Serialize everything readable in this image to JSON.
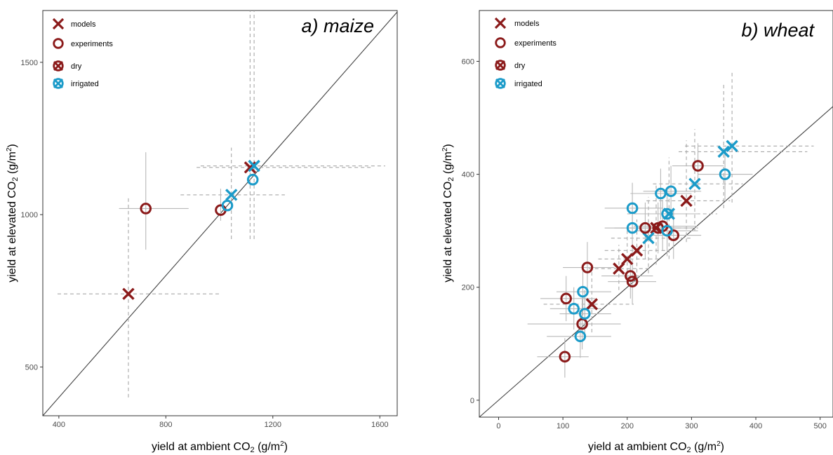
{
  "colors": {
    "dry": "#8B1A1A",
    "irrigated": "#1B9BC9",
    "model_error_bar": "#A8A8A8",
    "experiment_error_bar": "#B8B8B8",
    "one_to_one_line": "#404040"
  },
  "legend": {
    "models": "models",
    "experiments": "experiments",
    "dry": "dry",
    "irrigated": "irrigated"
  },
  "chart_data": [
    {
      "type": "scatter",
      "title": "a) maize",
      "xlabel_main": "yield at ambient CO",
      "xlabel_sub": "2",
      "xlabel_unit": " (g/m",
      "xlabel_sup": "2",
      "xlabel_close": ")",
      "ylabel_main": "yield at elevated CO",
      "ylabel_sub": "2",
      "ylabel_unit": " (g/m",
      "ylabel_sup": "2",
      "ylabel_close": ")",
      "xlim": [
        340,
        1665
      ],
      "ylim": [
        340,
        1670
      ],
      "xticks": [
        400,
        800,
        1200,
        1600
      ],
      "yticks": [
        500,
        1000,
        1500
      ],
      "reference_line": "y = x",
      "grid": false,
      "legend_position": "top-left",
      "points": [
        {
          "type": "model",
          "water": "dry",
          "x": 660,
          "y": 740,
          "xerr": [
            395,
            1000
          ],
          "yerr": [
            400,
            1060
          ]
        },
        {
          "type": "model",
          "water": "dry",
          "x": 1115,
          "y": 1155,
          "xerr": [
            915,
            1570
          ],
          "yerr": [
            920,
            1780
          ]
        },
        {
          "type": "model",
          "water": "irrigated",
          "x": 1045,
          "y": 1065,
          "xerr": [
            855,
            1245
          ],
          "yerr": [
            920,
            1220
          ]
        },
        {
          "type": "model",
          "water": "irrigated",
          "x": 1130,
          "y": 1160,
          "xerr": [
            930,
            1620
          ],
          "yerr": [
            920,
            1830
          ]
        },
        {
          "type": "experiment",
          "water": "dry",
          "x": 725,
          "y": 1020,
          "xerr": [
            625,
            885
          ],
          "yerr": [
            885,
            1205
          ]
        },
        {
          "type": "experiment",
          "water": "dry",
          "x": 1005,
          "y": 1015,
          "xerr": null,
          "yerr": [
            980,
            1085
          ]
        },
        {
          "type": "experiment",
          "water": "irrigated",
          "x": 1030,
          "y": 1030,
          "xerr": null,
          "yerr": null
        },
        {
          "type": "experiment",
          "water": "irrigated",
          "x": 1125,
          "y": 1115,
          "xerr": null,
          "yerr": null
        }
      ]
    },
    {
      "type": "scatter",
      "title": "b) wheat",
      "xlabel_main": "yield at ambient CO",
      "xlabel_sub": "2",
      "xlabel_unit": " (g/m",
      "xlabel_sup": "2",
      "xlabel_close": ")",
      "ylabel_main": "yield at elevated CO",
      "ylabel_sub": "2",
      "ylabel_unit": " (g/m",
      "ylabel_sup": "2",
      "ylabel_close": ")",
      "xlim": [
        -30,
        520
      ],
      "ylim": [
        -30,
        690
      ],
      "xticks": [
        0,
        100,
        200,
        300,
        400,
        500
      ],
      "yticks": [
        0,
        200,
        400,
        600
      ],
      "reference_line": "y = x",
      "grid": false,
      "legend_position": "top-left",
      "points": [
        {
          "type": "model",
          "water": "dry",
          "x": 187,
          "y": 233,
          "xerr": [
            140,
            235
          ],
          "yerr": [
            195,
            275
          ]
        },
        {
          "type": "model",
          "water": "dry",
          "x": 200,
          "y": 250,
          "xerr": [
            155,
            250
          ],
          "yerr": [
            205,
            300
          ]
        },
        {
          "type": "model",
          "water": "dry",
          "x": 215,
          "y": 265,
          "xerr": [
            165,
            265
          ],
          "yerr": [
            215,
            320
          ]
        },
        {
          "type": "model",
          "water": "dry",
          "x": 145,
          "y": 170,
          "xerr": [
            70,
            210
          ],
          "yerr": [
            120,
            230
          ]
        },
        {
          "type": "model",
          "water": "dry",
          "x": 245,
          "y": 305,
          "xerr": [
            190,
            310
          ],
          "yerr": [
            240,
            380
          ]
        },
        {
          "type": "model",
          "water": "dry",
          "x": 292,
          "y": 353,
          "xerr": [
            230,
            360
          ],
          "yerr": [
            280,
            460
          ]
        },
        {
          "type": "model",
          "water": "irrigated",
          "x": 233,
          "y": 287,
          "xerr": [
            175,
            300
          ],
          "yerr": [
            225,
            360
          ]
        },
        {
          "type": "model",
          "water": "irrigated",
          "x": 265,
          "y": 330,
          "xerr": [
            200,
            340
          ],
          "yerr": [
            250,
            430
          ]
        },
        {
          "type": "model",
          "water": "irrigated",
          "x": 305,
          "y": 383,
          "xerr": [
            240,
            380
          ],
          "yerr": [
            300,
            480
          ]
        },
        {
          "type": "model",
          "water": "irrigated",
          "x": 350,
          "y": 440,
          "xerr": [
            280,
            480
          ],
          "yerr": [
            340,
            560
          ]
        },
        {
          "type": "model",
          "water": "irrigated",
          "x": 363,
          "y": 450,
          "xerr": [
            290,
            490
          ],
          "yerr": [
            350,
            580
          ]
        },
        {
          "type": "experiment",
          "water": "dry",
          "x": 103,
          "y": 77,
          "xerr": [
            60,
            140
          ],
          "yerr": [
            40,
            110
          ]
        },
        {
          "type": "experiment",
          "water": "dry",
          "x": 105,
          "y": 180,
          "xerr": [
            65,
            150
          ],
          "yerr": [
            140,
            220
          ]
        },
        {
          "type": "experiment",
          "water": "dry",
          "x": 130,
          "y": 135,
          "xerr": [
            45,
            190
          ],
          "yerr": [
            90,
            180
          ]
        },
        {
          "type": "experiment",
          "water": "dry",
          "x": 138,
          "y": 235,
          "xerr": [
            100,
            180
          ],
          "yerr": [
            190,
            280
          ]
        },
        {
          "type": "experiment",
          "water": "dry",
          "x": 205,
          "y": 220,
          "xerr": [
            160,
            240
          ],
          "yerr": [
            180,
            260
          ]
        },
        {
          "type": "experiment",
          "water": "dry",
          "x": 208,
          "y": 210,
          "xerr": [
            170,
            245
          ],
          "yerr": [
            170,
            250
          ]
        },
        {
          "type": "experiment",
          "water": "dry",
          "x": 228,
          "y": 305,
          "xerr": [
            180,
            280
          ],
          "yerr": [
            250,
            350
          ]
        },
        {
          "type": "experiment",
          "water": "dry",
          "x": 248,
          "y": 305,
          "xerr": [
            200,
            300
          ],
          "yerr": [
            260,
            350
          ]
        },
        {
          "type": "experiment",
          "water": "dry",
          "x": 255,
          "y": 308,
          "xerr": [
            210,
            310
          ],
          "yerr": [
            265,
            355
          ]
        },
        {
          "type": "experiment",
          "water": "dry",
          "x": 272,
          "y": 292,
          "xerr": [
            230,
            315
          ],
          "yerr": [
            250,
            335
          ]
        },
        {
          "type": "experiment",
          "water": "dry",
          "x": 310,
          "y": 415,
          "xerr": [
            270,
            350
          ],
          "yerr": [
            375,
            455
          ]
        },
        {
          "type": "experiment",
          "water": "irrigated",
          "x": 117,
          "y": 162,
          "xerr": [
            80,
            160
          ],
          "yerr": [
            125,
            200
          ]
        },
        {
          "type": "experiment",
          "water": "irrigated",
          "x": 127,
          "y": 113,
          "xerr": [
            75,
            175
          ],
          "yerr": [
            75,
            150
          ]
        },
        {
          "type": "experiment",
          "water": "irrigated",
          "x": 131,
          "y": 192,
          "xerr": [
            90,
            175
          ],
          "yerr": [
            150,
            235
          ]
        },
        {
          "type": "experiment",
          "water": "irrigated",
          "x": 134,
          "y": 153,
          "xerr": [
            95,
            175
          ],
          "yerr": [
            115,
            195
          ]
        },
        {
          "type": "experiment",
          "water": "irrigated",
          "x": 208,
          "y": 340,
          "xerr": [
            165,
            255
          ],
          "yerr": [
            295,
            385
          ]
        },
        {
          "type": "experiment",
          "water": "irrigated",
          "x": 208,
          "y": 305,
          "xerr": [
            165,
            255
          ],
          "yerr": [
            260,
            350
          ]
        },
        {
          "type": "experiment",
          "water": "irrigated",
          "x": 252,
          "y": 366,
          "xerr": [
            205,
            300
          ],
          "yerr": [
            320,
            410
          ]
        },
        {
          "type": "experiment",
          "water": "irrigated",
          "x": 262,
          "y": 330,
          "xerr": [
            215,
            310
          ],
          "yerr": [
            285,
            375
          ]
        },
        {
          "type": "experiment",
          "water": "irrigated",
          "x": 268,
          "y": 370,
          "xerr": [
            225,
            315
          ],
          "yerr": [
            325,
            415
          ]
        },
        {
          "type": "experiment",
          "water": "irrigated",
          "x": 262,
          "y": 300,
          "xerr": [
            215,
            310
          ],
          "yerr": [
            255,
            345
          ]
        },
        {
          "type": "experiment",
          "water": "irrigated",
          "x": 352,
          "y": 400,
          "xerr": [
            310,
            395
          ],
          "yerr": [
            355,
            445
          ]
        }
      ]
    }
  ]
}
